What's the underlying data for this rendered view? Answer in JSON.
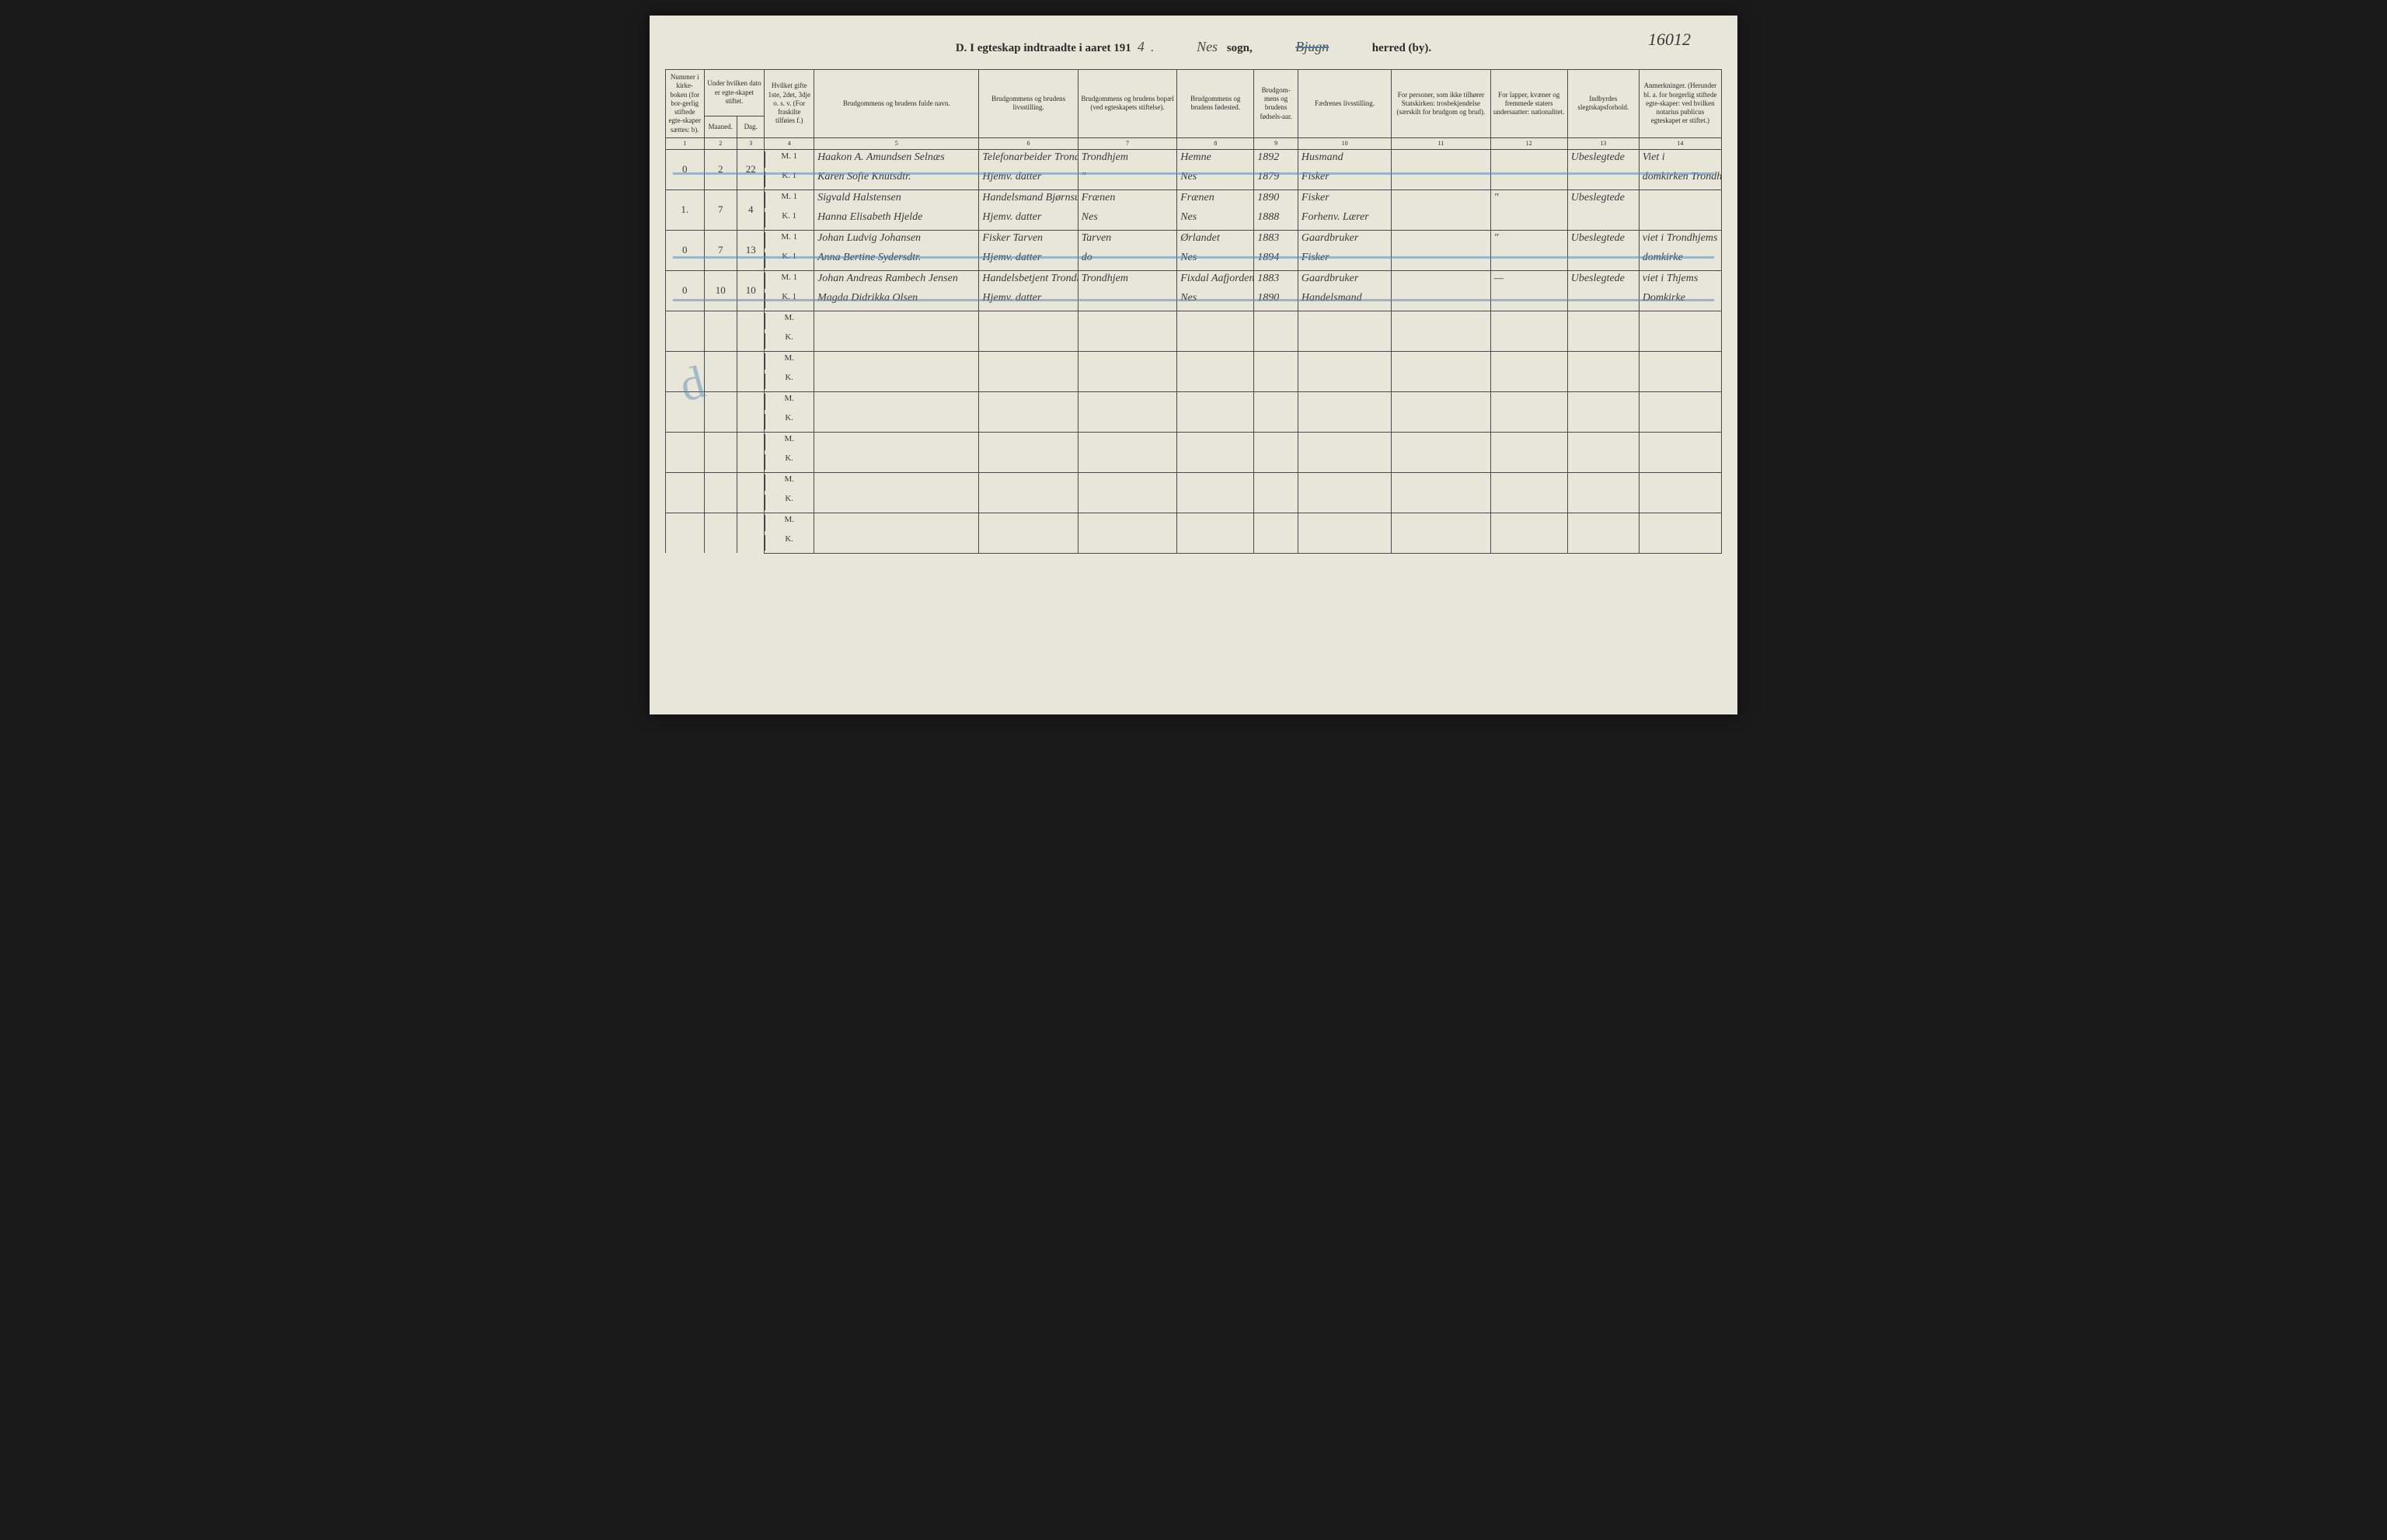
{
  "page_number_handwritten": "16012",
  "title": {
    "prefix_bold": "D.  I egteskap indtraadte i aaret 191",
    "year_suffix_script": "4",
    "period": ".",
    "sogn_script": "Nes",
    "sogn_label": "sogn,",
    "herred_script_struck": "Bjugn",
    "herred_label": "herred (by)."
  },
  "headers": {
    "c1": "Nummer i kirke-boken (for bor-gerlig stiftede egte-skaper sættes: b).",
    "c2_group": "Under hvilken dato er egte-skapet stiftet.",
    "c2": "Maaned.",
    "c3": "Dag.",
    "c4": "Hvilket gifte 1ste, 2det, 3dje o. s. v. (For fraskilte tilføies f.)",
    "c5": "Brudgommens og brudens fulde navn.",
    "c6": "Brudgommens og brudens livsstilling.",
    "c7": "Brudgommens og brudens bopæl (ved egteskapets stiftelse).",
    "c8": "Brudgommens og brudens fødested.",
    "c9": "Brudgom-mens og brudens fødsels-aar.",
    "c10": "Fædrenes livsstilling.",
    "c11": "For personer, som ikke tilhører Statskirken: trosbekjendelse (særskilt for brudgom og brud).",
    "c12": "For lapper, kvæner og fremmede staters undersaatter: nationalitet.",
    "c13": "Indbyrdes slegtskapsforhold.",
    "c14": "Anmerkninger. (Herunder bl. a. for borgerlig stiftede egte-skaper: ved hvilken notarius publicus egteskapet er stiftet.)"
  },
  "colnums": [
    "1",
    "2",
    "3",
    "4",
    "5",
    "6",
    "7",
    "8",
    "9",
    "10",
    "11",
    "12",
    "13",
    "14"
  ],
  "mk_labels": {
    "m": "M.",
    "k": "K."
  },
  "pairs": [
    {
      "num": "0",
      "maaned": "2",
      "dag": "22",
      "m": {
        "gifte": "1",
        "navn": "Haakon A. Amundsen Selnæs",
        "livsstilling": "Telefonarbeider Trondhjem",
        "bopael": "Trondhjem",
        "fodested": "Hemne",
        "aar": "1892",
        "faedre": "Husmand",
        "c11": "",
        "c12": "",
        "c13": "Ubeslegtede",
        "c14": "Viet i"
      },
      "k": {
        "gifte": "1",
        "navn": "Karen Sofie Knutsdtr.",
        "livsstilling": "Hjemv. datter",
        "bopael": "\"",
        "fodested": "Nes",
        "aar": "1879",
        "faedre": "Fisker",
        "c11": "",
        "c12": "",
        "c13": "",
        "c14": "domkirken Trondhjem"
      }
    },
    {
      "num": "1.",
      "maaned": "7",
      "dag": "4",
      "m": {
        "gifte": "1",
        "navn": "Sigvald Halstensen",
        "livsstilling": "Handelsmand Bjørnsund Romsd.",
        "bopael": "Frænen",
        "fodested": "Frænen",
        "aar": "1890",
        "faedre": "Fisker",
        "c11": "",
        "c12": "\"",
        "c13": "Ubeslegtede",
        "c14": ""
      },
      "k": {
        "gifte": "1",
        "navn": "Hanna Elisabeth Hjelde",
        "livsstilling": "Hjemv. datter",
        "bopael": "Nes",
        "fodested": "Nes",
        "aar": "1888",
        "faedre": "Forhenv. Lærer",
        "c11": "",
        "c12": "",
        "c13": "",
        "c14": ""
      }
    },
    {
      "num": "0",
      "maaned": "7",
      "dag": "13",
      "m": {
        "gifte": "1",
        "navn": "Johan Ludvig Johansen",
        "livsstilling": "Fisker Tarven",
        "bopael": "Tarven",
        "fodested": "Ørlandet",
        "aar": "1883",
        "faedre": "Gaardbruker",
        "c11": "",
        "c12": "\"",
        "c13": "Ubeslegtede",
        "c14": "viet i Trondhjems"
      },
      "k": {
        "gifte": "1",
        "navn": "Anna Bertine Sydersdtr.",
        "livsstilling": "Hjemv. datter",
        "bopael": "do",
        "fodested": "Nes",
        "aar": "1894",
        "faedre": "Fisker",
        "c11": "",
        "c12": "",
        "c13": "",
        "c14": "domkirke"
      }
    },
    {
      "num": "0",
      "maaned": "10",
      "dag": "10",
      "m": {
        "gifte": "1",
        "navn": "Johan Andreas Rambech Jensen",
        "livsstilling": "Handelsbetjent Trondhjem",
        "bopael": "Trondhjem",
        "fodested": "Fixdal Aafjorden",
        "aar": "1883",
        "faedre": "Gaardbruker",
        "c11": "",
        "c12": "—",
        "c13": "Ubeslegtede",
        "c14": "viet i Thjems"
      },
      "k": {
        "gifte": "1",
        "navn": "Magda Didrikka Olsen",
        "livsstilling": "Hjemv. datter",
        "bopael": "",
        "fodested": "Nes",
        "aar": "1890",
        "faedre": "Handelsmand",
        "c11": "",
        "c12": "",
        "c13": "",
        "c14": "Domkirke"
      }
    }
  ],
  "empty_pairs": 6,
  "colors": {
    "paper": "#e8e6d8",
    "ink": "#2a2a2a",
    "script_ink": "#3a3a3a",
    "rule": "#4a4a4a",
    "blue_pencil": "rgba(90,140,190,0.55)"
  }
}
